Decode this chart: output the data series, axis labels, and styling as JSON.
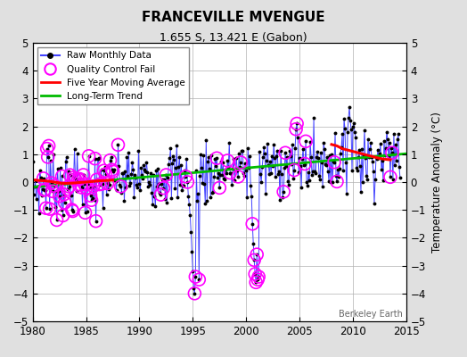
{
  "title": "FRANCEVILLE MVENGUE",
  "subtitle": "1.655 S, 13.421 E (Gabon)",
  "ylabel": "Temperature Anomaly (°C)",
  "xlim": [
    1980,
    2015
  ],
  "ylim": [
    -5,
    5
  ],
  "yticks": [
    -5,
    -4,
    -3,
    -2,
    -1,
    0,
    1,
    2,
    3,
    4,
    5
  ],
  "xticks": [
    1980,
    1985,
    1990,
    1995,
    2000,
    2005,
    2010,
    2015
  ],
  "background_color": "#e0e0e0",
  "plot_bg_color": "#ffffff",
  "grid_color": "#b0b0b0",
  "watermark": "Berkeley Earth",
  "raw_line_color": "#4444ff",
  "raw_dot_color": "#000000",
  "qc_color": "#ff00ff",
  "ma_color": "#ff0000",
  "trend_color": "#00bb00",
  "trend_x": [
    1980,
    2015
  ],
  "trend_y": [
    -0.18,
    1.02
  ],
  "ma_seg1_x": [
    1980.0,
    1980.5,
    1981.0,
    1981.5,
    1982.0,
    1982.5,
    1983.0,
    1983.5,
    1984.0,
    1984.5,
    1985.0,
    1985.5,
    1986.0,
    1986.5,
    1987.0,
    1987.5
  ],
  "ma_seg1_y": [
    0.08,
    0.06,
    0.05,
    0.03,
    0.0,
    -0.03,
    -0.05,
    -0.04,
    -0.03,
    -0.01,
    0.0,
    0.02,
    0.04,
    0.05,
    0.06,
    0.07
  ],
  "ma_seg2_x": [
    2008.0,
    2008.5,
    2009.0,
    2009.5,
    2010.0,
    2010.5,
    2011.0,
    2011.5,
    2012.0,
    2012.5,
    2013.0,
    2013.5
  ],
  "ma_seg2_y": [
    1.35,
    1.3,
    1.2,
    1.15,
    1.1,
    1.05,
    1.0,
    0.95,
    0.9,
    0.85,
    0.82,
    0.8
  ]
}
